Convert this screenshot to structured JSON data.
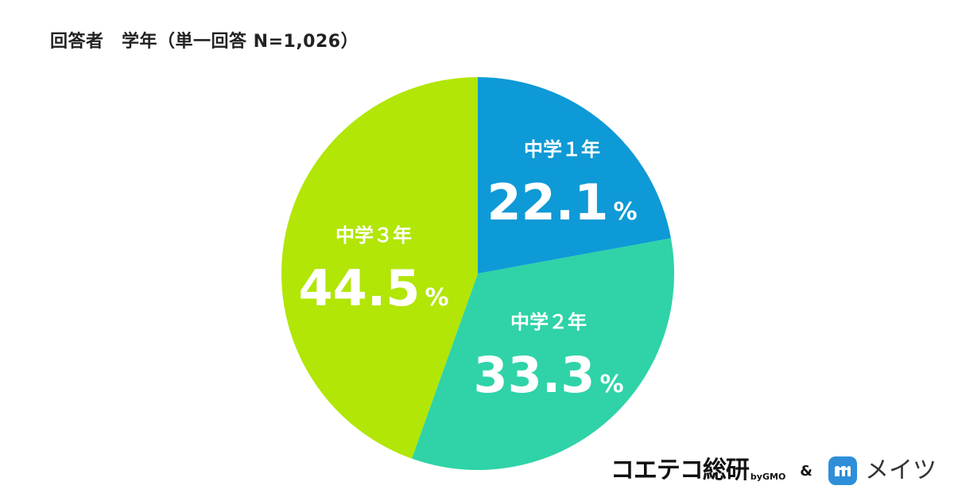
{
  "chart_data": {
    "type": "pie",
    "title": "回答者　学年（単一回答 N=1,026）",
    "slices": [
      {
        "label": "中学１年",
        "value": 22.1,
        "value_text": "22.1",
        "color": "#0e9ad6"
      },
      {
        "label": "中学２年",
        "value": 33.3,
        "value_text": "33.3",
        "color": "#2fd3a7"
      },
      {
        "label": "中学３年",
        "value": 44.5,
        "value_text": "44.5",
        "color": "#b1e607"
      }
    ],
    "unit": "%",
    "start": "12 o'clock",
    "direction": "clockwise",
    "label_color": "#ffffff"
  },
  "footer": {
    "brand_left": "コエテコ総研",
    "brand_by": "byGMO",
    "ampersand": "&",
    "brand_right": "メイツ",
    "brand_right_logo_color": "#2e8fd8"
  }
}
